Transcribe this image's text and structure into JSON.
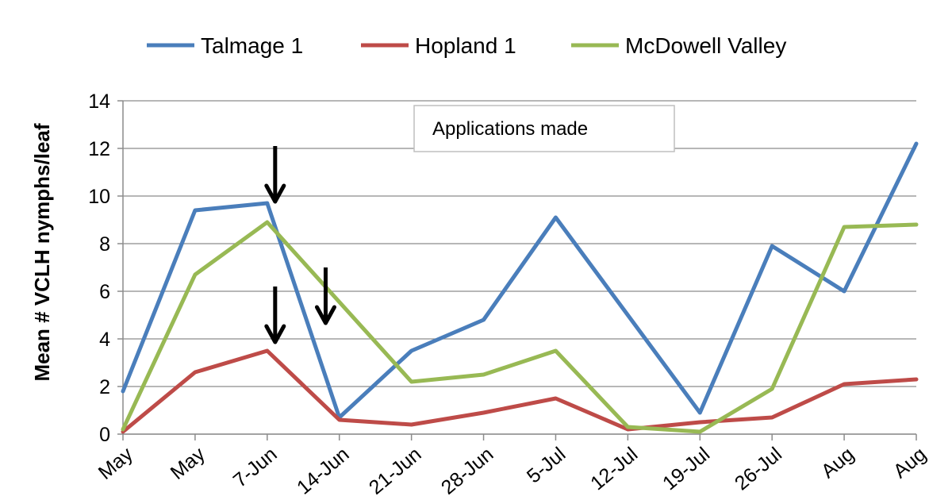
{
  "chart_data": {
    "type": "line",
    "title": "",
    "ylabel": "Mean  # VCLH nymphs/leaf",
    "xlabel": "",
    "ylim": [
      0,
      14
    ],
    "yticks": [
      0,
      2,
      4,
      6,
      8,
      10,
      12,
      14
    ],
    "grid": "horizontal",
    "legend": "top",
    "categories": [
      "May",
      "May",
      "7-Jun",
      "14-Jun",
      "21-Jun",
      "28-Jun",
      "5-Jul",
      "12-Jul",
      "19-Jul",
      "26-Jul",
      "Aug",
      "Aug"
    ],
    "series": [
      {
        "name": "Talmage 1",
        "color": "#4a7ebb",
        "values": [
          1.8,
          9.4,
          9.7,
          0.7,
          3.5,
          4.8,
          9.1,
          null,
          0.9,
          7.9,
          6.0,
          12.2
        ]
      },
      {
        "name": "Hopland 1",
        "color": "#be4b48",
        "values": [
          0.1,
          2.6,
          3.5,
          0.6,
          0.4,
          0.9,
          1.5,
          0.2,
          0.5,
          0.7,
          2.1,
          2.3
        ]
      },
      {
        "name": "McDowell Valley",
        "color": "#98b954",
        "values": [
          0.2,
          6.7,
          8.9,
          null,
          2.2,
          2.5,
          3.5,
          0.3,
          0.1,
          1.9,
          8.7,
          8.8
        ]
      }
    ],
    "annotation": "Applications made",
    "arrows": [
      {
        "x_category_index": 2,
        "y": 9.7
      },
      {
        "x_category_index": 2,
        "y": 3.8
      },
      {
        "x_category_index": 2.7,
        "y": 4.6
      }
    ]
  }
}
